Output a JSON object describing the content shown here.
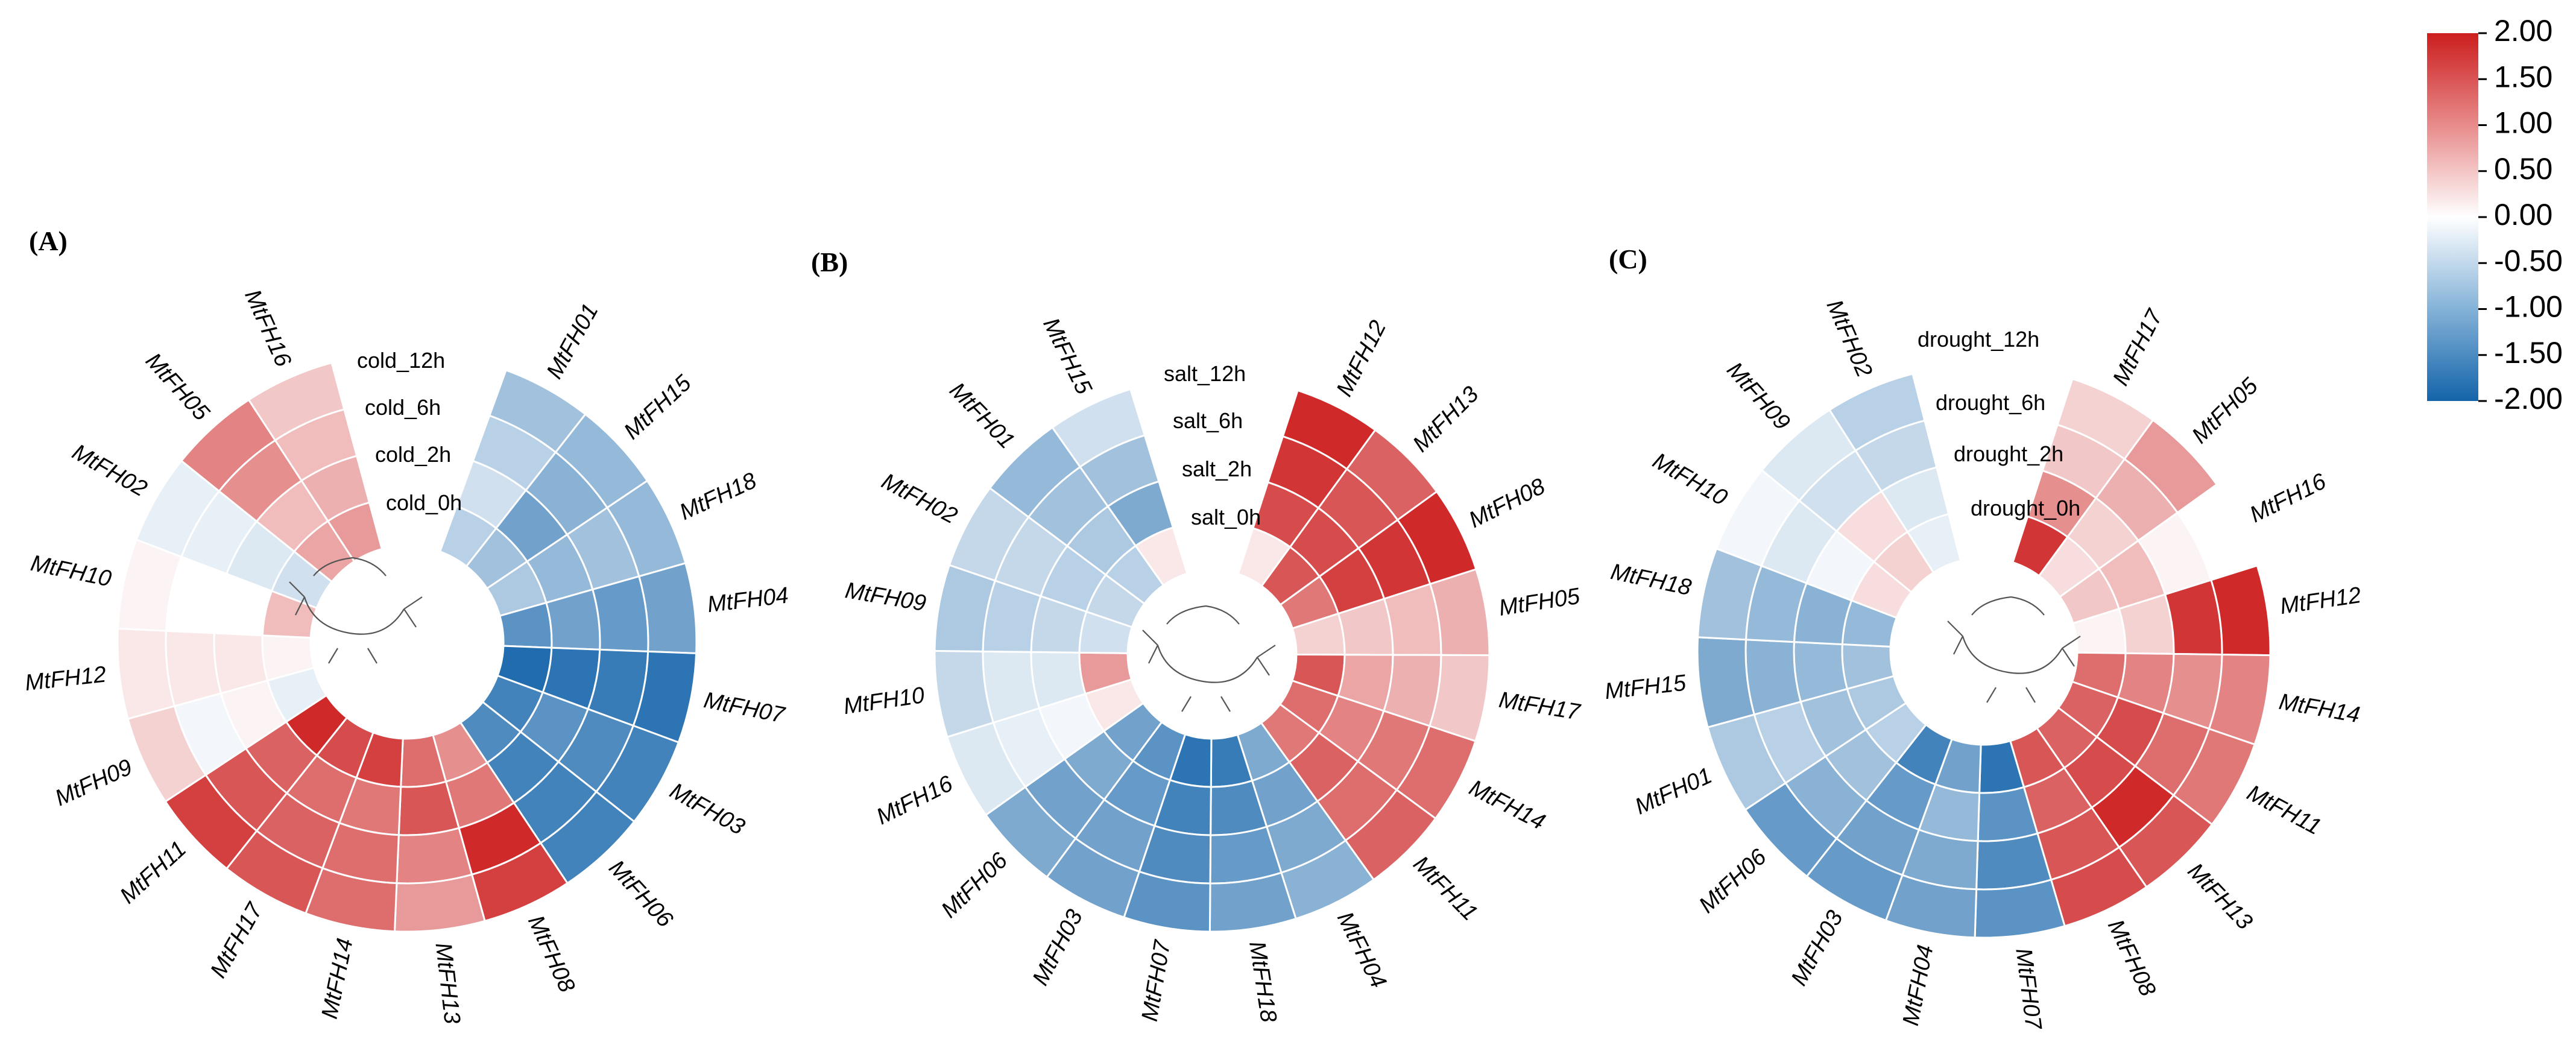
{
  "chart_data": [
    {
      "type": "heatmap",
      "layout": "circular",
      "panel_label": "(A)",
      "conditions": [
        "cold_0h",
        "cold_2h",
        "cold_6h",
        "cold_12h"
      ],
      "genes": [
        "MtFH01",
        "MtFH15",
        "MtFH18",
        "MtFH04",
        "MtFH07",
        "MtFH03",
        "MtFH06",
        "MtFH08",
        "MtFH13",
        "MtFH14",
        "MtFH17",
        "MtFH11",
        "MtFH09",
        "MtFH12",
        "MtFH10",
        "MtFH02",
        "MtFH05",
        "MtFH16"
      ],
      "values": [
        [
          -0.6,
          -0.4,
          -0.6,
          -0.8
        ],
        [
          -0.8,
          -1.2,
          -1.0,
          -0.9
        ],
        [
          -0.7,
          -0.9,
          -0.8,
          -0.9
        ],
        [
          -1.4,
          -1.2,
          -1.3,
          -1.2
        ],
        [
          -1.9,
          -1.8,
          -1.7,
          -1.8
        ],
        [
          -1.6,
          -1.4,
          -1.5,
          -1.6
        ],
        [
          -1.5,
          -1.6,
          -1.6,
          -1.6
        ],
        [
          1.0,
          1.2,
          1.9,
          1.7
        ],
        [
          1.3,
          1.5,
          1.1,
          0.9
        ],
        [
          1.7,
          1.2,
          1.3,
          1.3
        ],
        [
          1.6,
          1.3,
          1.4,
          1.5
        ],
        [
          1.9,
          1.4,
          1.5,
          1.7
        ],
        [
          -0.2,
          0.1,
          -0.1,
          0.4
        ],
        [
          0.1,
          0.2,
          0.2,
          0.2
        ],
        [
          0.6,
          0.0,
          0.0,
          0.1
        ],
        [
          -0.4,
          -0.3,
          -0.2,
          -0.2
        ],
        [
          0.8,
          0.6,
          1.0,
          1.1
        ],
        [
          0.9,
          0.7,
          0.6,
          0.5
        ]
      ]
    },
    {
      "type": "heatmap",
      "layout": "circular",
      "panel_label": "(B)",
      "conditions": [
        "salt_0h",
        "salt_2h",
        "salt_6h",
        "salt_12h"
      ],
      "genes": [
        "MtFH12",
        "MtFH13",
        "MtFH08",
        "MtFH05",
        "MtFH17",
        "MtFH14",
        "MtFH11",
        "MtFH04",
        "MtFH18",
        "MtFH07",
        "MtFH03",
        "MtFH06",
        "MtFH16",
        "MtFH10",
        "MtFH09",
        "MtFH02",
        "MtFH01",
        "MtFH15"
      ],
      "values": [
        [
          0.2,
          1.6,
          1.8,
          1.9
        ],
        [
          1.5,
          1.6,
          1.5,
          1.4
        ],
        [
          1.2,
          1.7,
          1.8,
          1.9
        ],
        [
          0.4,
          0.5,
          0.6,
          0.7
        ],
        [
          1.5,
          0.8,
          0.7,
          0.5
        ],
        [
          1.3,
          1.1,
          1.2,
          1.3
        ],
        [
          1.2,
          1.4,
          1.3,
          1.4
        ],
        [
          -1.1,
          -1.2,
          -1.1,
          -1.0
        ],
        [
          -1.7,
          -1.5,
          -1.3,
          -1.2
        ],
        [
          -1.8,
          -1.6,
          -1.5,
          -1.4
        ],
        [
          -1.4,
          -1.3,
          -1.2,
          -1.2
        ],
        [
          -1.2,
          -1.1,
          -1.2,
          -1.1
        ],
        [
          0.2,
          -0.1,
          -0.2,
          -0.3
        ],
        [
          0.9,
          -0.3,
          -0.3,
          -0.5
        ],
        [
          -0.4,
          -0.5,
          -0.6,
          -0.7
        ],
        [
          -0.5,
          -0.6,
          -0.5,
          -0.5
        ],
        [
          -0.6,
          -0.7,
          -0.8,
          -0.9
        ],
        [
          0.2,
          -1.1,
          -0.8,
          -0.4
        ]
      ]
    },
    {
      "type": "heatmap",
      "layout": "circular",
      "panel_label": "(C)",
      "conditions": [
        "drought_0h",
        "drought_2h",
        "drought_6h",
        "drought_12h"
      ],
      "genes": [
        "MtFH17",
        "MtFH05",
        "MtFH16",
        "MtFH12",
        "MtFH14",
        "MtFH11",
        "MtFH13",
        "MtFH08",
        "MtFH07",
        "MtFH04",
        "MtFH03",
        "MtFH06",
        "MtFH01",
        "MtFH15",
        "MtFH18",
        "MtFH10",
        "MtFH09",
        "MtFH02"
      ],
      "values": [
        [
          1.8,
          1.0,
          0.5,
          0.4
        ],
        [
          0.3,
          0.4,
          0.7,
          0.9
        ],
        [
          0.5,
          0.6,
          0.1,
          0.0
        ],
        [
          0.1,
          0.4,
          1.8,
          1.9
        ],
        [
          1.3,
          1.1,
          1.0,
          1.1
        ],
        [
          1.4,
          1.6,
          1.3,
          1.2
        ],
        [
          1.4,
          1.6,
          1.9,
          1.5
        ],
        [
          1.5,
          1.4,
          1.5,
          1.6
        ],
        [
          -1.8,
          -1.4,
          -1.5,
          -1.4
        ],
        [
          -1.2,
          -0.9,
          -1.1,
          -1.2
        ],
        [
          -1.6,
          -1.3,
          -1.2,
          -1.3
        ],
        [
          -0.6,
          -0.8,
          -1.0,
          -1.3
        ],
        [
          -0.7,
          -0.8,
          -0.6,
          -0.7
        ],
        [
          -0.8,
          -0.9,
          -1.0,
          -1.1
        ],
        [
          -0.9,
          -1.0,
          -0.9,
          -0.8
        ],
        [
          0.3,
          -0.1,
          -0.3,
          -0.1
        ],
        [
          0.4,
          0.3,
          -0.4,
          -0.3
        ],
        [
          -0.2,
          -0.3,
          -0.5,
          -0.6
        ]
      ]
    }
  ],
  "color_scale": {
    "ticks": [
      "2.00",
      "1.50",
      "1.00",
      "0.50",
      "0.00",
      "-0.50",
      "-1.00",
      "-1.50",
      "-2.00"
    ],
    "min": -2.0,
    "max": 2.0,
    "colors": {
      "low": "#1464aa",
      "mid": "#ffffff",
      "high": "#cc1e1e"
    }
  }
}
